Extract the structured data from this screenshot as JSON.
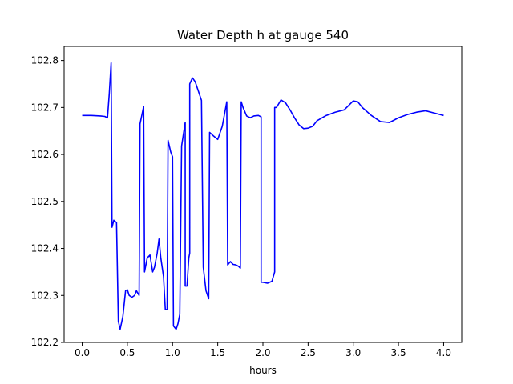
{
  "chart_data": {
    "type": "line",
    "title": "Water Depth h at gauge 540",
    "xlabel": "hours",
    "ylabel": "",
    "xlim": [
      -0.2,
      4.2
    ],
    "ylim": [
      102.2,
      102.83
    ],
    "grid": false,
    "xticks": [
      0.0,
      0.5,
      1.0,
      1.5,
      2.0,
      2.5,
      3.0,
      3.5,
      4.0
    ],
    "xtick_labels": [
      "0.0",
      "0.5",
      "1.0",
      "1.5",
      "2.0",
      "2.5",
      "3.0",
      "3.5",
      "4.0"
    ],
    "yticks": [
      102.2,
      102.3,
      102.4,
      102.5,
      102.6,
      102.7,
      102.8
    ],
    "ytick_labels": [
      "102.2",
      "102.3",
      "102.4",
      "102.5",
      "102.6",
      "102.7",
      "102.8"
    ],
    "series": [
      {
        "color": "#0000ff",
        "x": [
          0.0,
          0.1,
          0.2,
          0.25,
          0.28,
          0.3,
          0.32,
          0.33,
          0.33,
          0.35,
          0.38,
          0.4,
          0.42,
          0.45,
          0.48,
          0.5,
          0.52,
          0.55,
          0.58,
          0.6,
          0.63,
          0.64,
          0.64,
          0.68,
          0.69,
          0.69,
          0.72,
          0.75,
          0.78,
          0.8,
          0.83,
          0.85,
          0.87,
          0.9,
          0.92,
          0.94,
          0.95,
          0.95,
          0.98,
          1.0,
          1.01,
          1.01,
          1.04,
          1.06,
          1.08,
          1.1,
          1.1,
          1.14,
          1.14,
          1.16,
          1.18,
          1.19,
          1.19,
          1.22,
          1.25,
          1.28,
          1.32,
          1.34,
          1.34,
          1.37,
          1.4,
          1.41,
          1.41,
          1.45,
          1.5,
          1.55,
          1.6,
          1.61,
          1.61,
          1.64,
          1.67,
          1.7,
          1.73,
          1.75,
          1.76,
          1.76,
          1.78,
          1.82,
          1.86,
          1.9,
          1.95,
          1.98,
          1.98,
          2.0,
          2.05,
          2.1,
          2.13,
          2.13,
          2.15,
          2.2,
          2.25,
          2.3,
          2.35,
          2.4,
          2.45,
          2.5,
          2.55,
          2.6,
          2.7,
          2.8,
          2.9,
          3.0,
          3.05,
          3.1,
          3.2,
          3.3,
          3.4,
          3.5,
          3.6,
          3.7,
          3.8,
          3.9,
          4.0
        ],
        "values": [
          102.683,
          102.683,
          102.682,
          102.681,
          102.678,
          102.73,
          102.795,
          102.445,
          102.445,
          102.46,
          102.455,
          102.245,
          102.228,
          102.255,
          102.31,
          102.312,
          102.3,
          102.296,
          102.3,
          102.31,
          102.3,
          102.665,
          102.665,
          102.702,
          102.35,
          102.35,
          102.38,
          102.386,
          102.35,
          102.36,
          102.39,
          102.42,
          102.38,
          102.34,
          102.27,
          102.27,
          102.63,
          102.63,
          102.605,
          102.595,
          102.235,
          102.235,
          102.228,
          102.24,
          102.26,
          102.618,
          102.618,
          102.668,
          102.32,
          102.32,
          102.38,
          102.39,
          102.75,
          102.763,
          102.755,
          102.738,
          102.715,
          102.36,
          102.36,
          102.31,
          102.293,
          102.647,
          102.647,
          102.64,
          102.632,
          102.66,
          102.712,
          102.365,
          102.365,
          102.372,
          102.366,
          102.365,
          102.362,
          102.358,
          102.712,
          102.712,
          102.7,
          102.682,
          102.678,
          102.682,
          102.683,
          102.68,
          102.328,
          102.328,
          102.326,
          102.33,
          102.35,
          102.7,
          102.7,
          102.716,
          102.71,
          102.695,
          102.678,
          102.663,
          102.655,
          102.656,
          102.66,
          102.672,
          102.683,
          102.69,
          102.695,
          102.714,
          102.712,
          102.7,
          102.683,
          102.67,
          102.668,
          102.678,
          102.685,
          102.69,
          102.693,
          102.688,
          102.683
        ]
      }
    ]
  }
}
